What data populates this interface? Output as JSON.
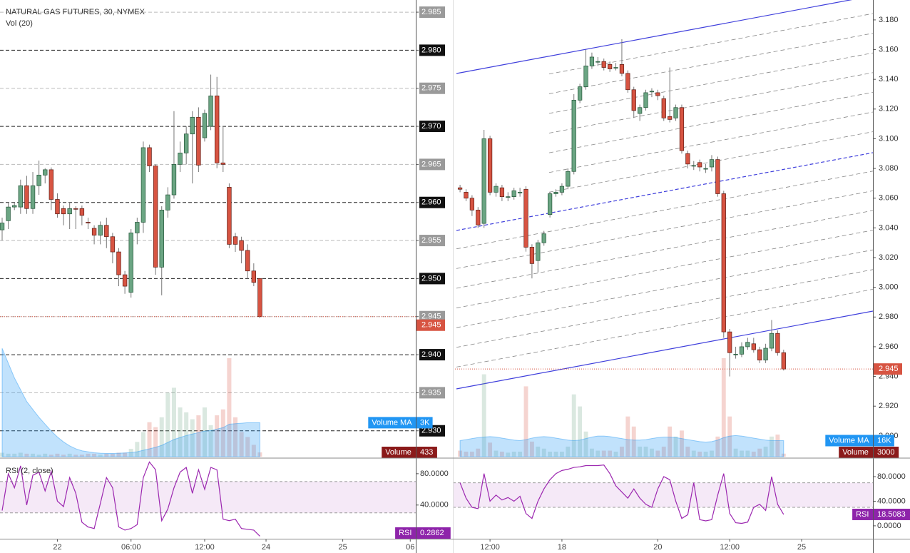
{
  "chart_data": [
    {
      "type": "candlestick",
      "title": "NATURAL GAS FUTURES, 30, NYMEX",
      "subtitle": "Vol (20)",
      "up_color": "#6ba583",
      "down_color": "#d75442",
      "grid": true,
      "tick_style": "boxed",
      "open": [
        2.9564,
        2.9576,
        2.9594,
        2.9594,
        2.9622,
        2.9592,
        2.9622,
        2.9636,
        2.9643,
        2.9604,
        2.9592,
        2.9585,
        2.9592,
        2.9592,
        2.9574,
        2.9566,
        2.9557,
        2.957,
        2.9555,
        2.9535,
        2.9505,
        2.9482,
        2.956,
        2.9574,
        2.9672,
        2.9648,
        2.9515,
        2.959,
        2.961,
        2.965,
        2.9665,
        2.969,
        2.9712,
        2.9685,
        2.97,
        2.974,
        2.9652,
        2.962,
        2.9555,
        2.955,
        2.9537,
        2.951,
        2.95
      ],
      "high": [
        2.958,
        2.96,
        2.96,
        2.963,
        2.9635,
        2.964,
        2.9655,
        2.9645,
        2.9646,
        2.9612,
        2.9596,
        2.96,
        2.9595,
        2.9596,
        2.958,
        2.957,
        2.9575,
        2.958,
        2.956,
        2.954,
        2.951,
        2.9565,
        2.958,
        2.968,
        2.9676,
        2.965,
        2.9595,
        2.962,
        2.972,
        2.968,
        2.97,
        2.972,
        2.9725,
        2.9722,
        2.9768,
        2.9765,
        2.97,
        2.9625,
        2.956,
        2.9555,
        2.9545,
        2.952,
        2.95
      ],
      "low": [
        2.955,
        2.9565,
        2.959,
        2.9585,
        2.9585,
        2.9585,
        2.961,
        2.9625,
        2.959,
        2.958,
        2.957,
        2.9565,
        2.9565,
        2.957,
        2.9565,
        2.9545,
        2.9545,
        2.954,
        2.952,
        2.949,
        2.948,
        2.9475,
        2.9545,
        2.956,
        2.964,
        2.9505,
        2.9478,
        2.958,
        2.9605,
        2.964,
        2.965,
        2.9625,
        2.964,
        2.968,
        2.9695,
        2.9645,
        2.964,
        2.954,
        2.9535,
        2.952,
        2.95,
        2.949,
        2.9448
      ],
      "close": [
        2.9573,
        2.9594,
        2.9596,
        2.9622,
        2.9592,
        2.9622,
        2.9636,
        2.9643,
        2.9604,
        2.9585,
        2.9585,
        2.9592,
        2.9591,
        2.9583,
        2.9573,
        2.9557,
        2.957,
        2.9555,
        2.9535,
        2.9505,
        2.949,
        2.956,
        2.9574,
        2.9672,
        2.9648,
        2.9515,
        2.959,
        2.961,
        2.965,
        2.9665,
        2.969,
        2.9712,
        2.9649,
        2.9717,
        2.974,
        2.9652,
        2.965,
        2.9545,
        2.9545,
        2.9537,
        2.951,
        2.9495,
        2.945
      ],
      "last_close_label": "2.945",
      "ylim": [
        2.9266,
        2.9866
      ],
      "yticks": [
        2.985,
        {
          "value": 2.98,
          "label": "2.980"
        },
        2.975,
        {
          "value": 2.97,
          "label": "2.970"
        },
        2.965,
        {
          "value": 2.96,
          "label": "2.960"
        },
        2.955,
        {
          "value": 2.95,
          "label": "2.950"
        },
        2.945,
        {
          "value": 2.94,
          "label": "2.940"
        },
        2.935,
        {
          "value": 2.93,
          "label": "2.930"
        }
      ],
      "xlim": [
        -0.35,
        67.4
      ],
      "xticks": [
        {
          "value": 9,
          "label": "22"
        },
        {
          "value": 21,
          "label": "06:00"
        },
        {
          "value": 33,
          "label": "12:00"
        },
        {
          "value": 43,
          "label": "24"
        },
        {
          "value": 55.5,
          "label": "25"
        },
        {
          "value": 66.5,
          "label": "06"
        }
      ],
      "volume": {
        "name": "Volume",
        "values": [
          400,
          300,
          300,
          400,
          300,
          300,
          200,
          300,
          200,
          300,
          200,
          300,
          200,
          200,
          300,
          300,
          200,
          300,
          300,
          400,
          400,
          800,
          1500,
          2500,
          3500,
          3000,
          4000,
          6500,
          7000,
          5000,
          4500,
          3800,
          4200,
          5000,
          3200,
          4200,
          4800,
          10000,
          4000,
          2500,
          2000,
          1200,
          433
        ]
      },
      "volume_ma": {
        "name": "Volume MA",
        "color": "#2196f3",
        "last_label": "3K",
        "values": [
          11000,
          9500,
          8000,
          6800,
          5600,
          4800,
          4000,
          3300,
          2600,
          2000,
          1500,
          1100,
          800,
          600,
          500,
          400,
          350,
          330,
          330,
          350,
          380,
          420,
          500,
          650,
          800,
          950,
          1150,
          1450,
          1750,
          1950,
          2150,
          2300,
          2450,
          2600,
          2650,
          2800,
          2950,
          3300,
          3350,
          3400,
          3450,
          3450,
          3450
        ]
      },
      "rsi": {
        "title": "RSI (2, close)",
        "name": "RSI",
        "color": "#9c27b0",
        "band": [
          30,
          70
        ],
        "ylim": [
          -3,
          99
        ],
        "yticks": [
          {
            "value": 80,
            "label": "80.0000"
          },
          {
            "value": 40,
            "label": "40.0000"
          }
        ],
        "values": [
          33,
          80,
          62,
          90,
          40,
          78,
          82,
          58,
          83,
          45,
          38,
          75,
          55,
          18,
          12,
          10,
          42,
          75,
          62,
          12,
          8,
          10,
          15,
          75,
          95,
          85,
          20,
          35,
          62,
          82,
          88,
          55,
          85,
          60,
          88,
          85,
          22,
          20,
          22,
          10,
          9,
          8,
          0.2862
        ]
      }
    },
    {
      "type": "candlestick",
      "up_color": "#6ba583",
      "down_color": "#d75442",
      "grid": false,
      "tick_style": "plain",
      "open": [
        3.067,
        3.064,
        3.06,
        3.052,
        3.043,
        3.1,
        3.064,
        3.067,
        3.061,
        3.061,
        3.064,
        3.066,
        3.027,
        3.018,
        3.03,
        3.049,
        3.063,
        3.064,
        3.068,
        3.078,
        3.126,
        3.135,
        3.149,
        3.152,
        3.152,
        3.15,
        3.148,
        3.15,
        3.144,
        3.133,
        3.117,
        3.121,
        3.132,
        3.131,
        3.127,
        3.115,
        3.114,
        3.121,
        3.09,
        3.082,
        3.084,
        3.08,
        3.081,
        3.086,
        3.063,
        2.97,
        2.955,
        2.955,
        2.96,
        2.962,
        2.958,
        2.951,
        2.959,
        2.969,
        2.956
      ],
      "high": [
        3.069,
        3.066,
        3.062,
        3.054,
        3.106,
        3.102,
        3.07,
        3.069,
        3.064,
        3.067,
        3.067,
        3.068,
        3.029,
        3.032,
        3.038,
        3.064,
        3.066,
        3.07,
        3.08,
        3.13,
        3.137,
        3.16,
        3.158,
        3.155,
        3.154,
        3.152,
        3.151,
        3.167,
        3.146,
        3.135,
        3.123,
        3.133,
        3.134,
        3.133,
        3.129,
        3.148,
        3.123,
        3.123,
        3.092,
        3.085,
        3.086,
        3.083,
        3.089,
        3.088,
        3.065,
        2.972,
        2.96,
        2.963,
        2.966,
        2.966,
        2.96,
        2.962,
        2.978,
        2.971,
        2.958
      ],
      "low": [
        3.064,
        3.058,
        3.048,
        3.04,
        3.04,
        3.062,
        3.061,
        3.058,
        3.058,
        3.059,
        3.061,
        3.024,
        3.006,
        3.01,
        3.028,
        3.047,
        3.061,
        3.062,
        3.066,
        3.076,
        3.124,
        3.133,
        3.147,
        3.149,
        3.146,
        3.145,
        3.146,
        3.142,
        3.131,
        3.114,
        3.112,
        3.119,
        3.128,
        3.126,
        3.112,
        3.111,
        3.112,
        3.09,
        3.08,
        3.079,
        3.078,
        3.077,
        3.078,
        3.061,
        2.966,
        2.94,
        2.952,
        2.953,
        2.958,
        2.956,
        2.949,
        2.949,
        2.957,
        2.954,
        2.944
      ],
      "close": [
        3.066,
        3.06,
        3.052,
        3.042,
        3.1,
        3.064,
        3.068,
        3.061,
        3.061,
        3.065,
        3.064,
        3.027,
        3.016,
        3.03,
        3.036,
        3.063,
        3.064,
        3.068,
        3.078,
        3.126,
        3.135,
        3.149,
        3.155,
        3.152,
        3.148,
        3.147,
        3.148,
        3.144,
        3.133,
        3.119,
        3.121,
        3.131,
        3.132,
        3.129,
        3.114,
        3.113,
        3.121,
        3.092,
        3.083,
        3.082,
        3.081,
        3.08,
        3.086,
        3.063,
        2.97,
        2.956,
        2.955,
        2.96,
        2.963,
        2.958,
        2.951,
        2.959,
        2.969,
        2.956,
        2.945
      ],
      "last_close_label": "2.945",
      "ylim": [
        2.886,
        3.1934
      ],
      "yticks": [
        {
          "value": 3.18,
          "label": "3.180"
        },
        {
          "value": 3.16,
          "label": "3.160"
        },
        {
          "value": 3.14,
          "label": "3.140"
        },
        {
          "value": 3.12,
          "label": "3.120"
        },
        {
          "value": 3.1,
          "label": "3.100"
        },
        {
          "value": 3.08,
          "label": "3.080"
        },
        {
          "value": 3.06,
          "label": "3.060"
        },
        {
          "value": 3.04,
          "label": "3.040"
        },
        {
          "value": 3.02,
          "label": "3.020"
        },
        {
          "value": 3,
          "label": "3.000"
        },
        {
          "value": 2.98,
          "label": "2.980"
        },
        {
          "value": 2.96,
          "label": "2.960"
        },
        {
          "value": 2.94,
          "label": "2.940"
        },
        {
          "value": 2.92,
          "label": "2.920"
        },
        {
          "value": 2.9,
          "label": "2.900"
        }
      ],
      "xlim": [
        -1.2,
        68.9
      ],
      "xticks": [
        {
          "value": 5,
          "label": "12:00"
        },
        {
          "value": 17,
          "label": "18"
        },
        {
          "value": 33,
          "label": "20"
        },
        {
          "value": 45,
          "label": "12:00"
        },
        {
          "value": 57,
          "label": "25"
        }
      ],
      "volume": {
        "name": "Volume",
        "values": [
          6000,
          5000,
          5000,
          8000,
          82000,
          14000,
          6000,
          5000,
          4000,
          5000,
          5000,
          70000,
          15000,
          10000,
          8000,
          5000,
          5000,
          5000,
          10000,
          62000,
          50000,
          25000,
          8000,
          6000,
          6000,
          6000,
          5000,
          10000,
          40000,
          30000,
          10000,
          10000,
          8000,
          6000,
          10000,
          30000,
          20000,
          26000,
          10000,
          6000,
          5000,
          5000,
          6000,
          20000,
          98000,
          40000,
          8000,
          6000,
          6000,
          5000,
          8000,
          10000,
          20000,
          22000,
          3000
        ]
      },
      "volume_ma": {
        "name": "Volume MA",
        "color": "#2196f3",
        "last_label": "16K",
        "values": [
          16000,
          17000,
          18000,
          19000,
          19500,
          20000,
          19500,
          18500,
          17500,
          16500,
          16000,
          17000,
          18500,
          19500,
          20000,
          19500,
          18500,
          17500,
          16500,
          16000,
          16500,
          18000,
          19500,
          20500,
          20500,
          20000,
          19000,
          18000,
          17000,
          16500,
          16500,
          17000,
          18000,
          19000,
          19500,
          19500,
          19000,
          18000,
          17000,
          16000,
          15000,
          14500,
          15000,
          16500,
          19000,
          20500,
          21000,
          20500,
          19500,
          18500,
          17500,
          16500,
          16000,
          16000,
          16000
        ]
      },
      "rsi": {
        "name": "RSI",
        "color": "#9c27b0",
        "band": [
          30,
          70
        ],
        "ylim": [
          -21,
          109
        ],
        "yticks": [
          {
            "value": 80,
            "label": "80.0000"
          },
          {
            "value": 40,
            "label": "40.0000"
          },
          {
            "value": 0,
            "label": "0.0000"
          }
        ],
        "values": [
          70,
          45,
          30,
          28,
          85,
          40,
          50,
          42,
          46,
          40,
          48,
          20,
          12,
          40,
          60,
          75,
          85,
          90,
          92,
          95,
          96,
          98,
          98,
          98,
          99,
          85,
          65,
          55,
          45,
          60,
          45,
          35,
          30,
          60,
          80,
          75,
          40,
          12,
          18,
          70,
          10,
          8,
          10,
          50,
          85,
          20,
          5,
          4,
          6,
          30,
          35,
          25,
          80,
          35,
          18.5083
        ]
      }
    }
  ]
}
